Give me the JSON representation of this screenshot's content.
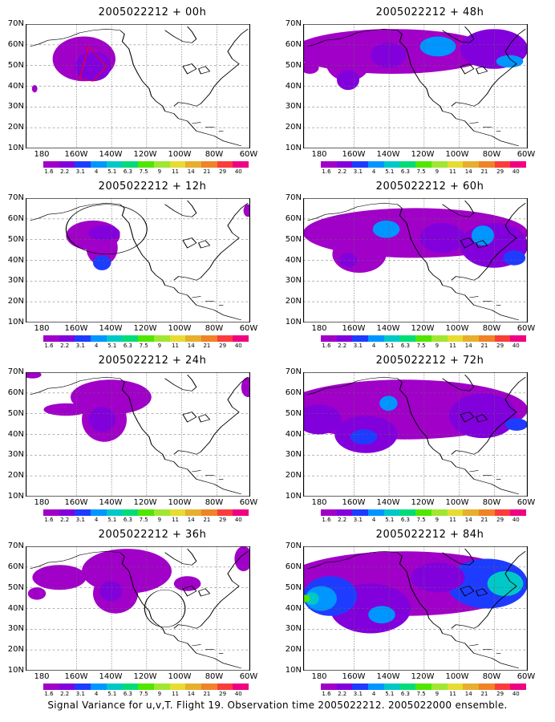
{
  "panels": [
    {
      "title": "2005022212 + 00h"
    },
    {
      "title": "2005022212 + 48h"
    },
    {
      "title": "2005022212 + 12h"
    },
    {
      "title": "2005022212 + 60h"
    },
    {
      "title": "2005022212 + 24h"
    },
    {
      "title": "2005022212 + 72h"
    },
    {
      "title": "2005022212 + 36h"
    },
    {
      "title": "2005022212 + 84h"
    }
  ],
  "lat_labels": [
    "70N",
    "60N",
    "50N",
    "40N",
    "30N",
    "20N",
    "10N"
  ],
  "lon_labels": [
    "180",
    "160W",
    "140W",
    "120W",
    "100W",
    "80W",
    "60W"
  ],
  "colorbar": {
    "labels": [
      "1.6",
      "2.2",
      "3.1",
      "4",
      "5.1",
      "6.3",
      "7.5",
      "9",
      "11",
      "14",
      "21",
      "29",
      "40"
    ],
    "colors": [
      "#a000c8",
      "#8200dc",
      "#1e3cff",
      "#0096ff",
      "#00c8c8",
      "#00dc78",
      "#50e600",
      "#a0e632",
      "#e6dc32",
      "#e6af2d",
      "#f08228",
      "#fa3c3c",
      "#f00082"
    ]
  },
  "footer": "Signal Variance for u,v,T. Flight 19. Observation time 2005022212. 2005022000 ensemble."
}
